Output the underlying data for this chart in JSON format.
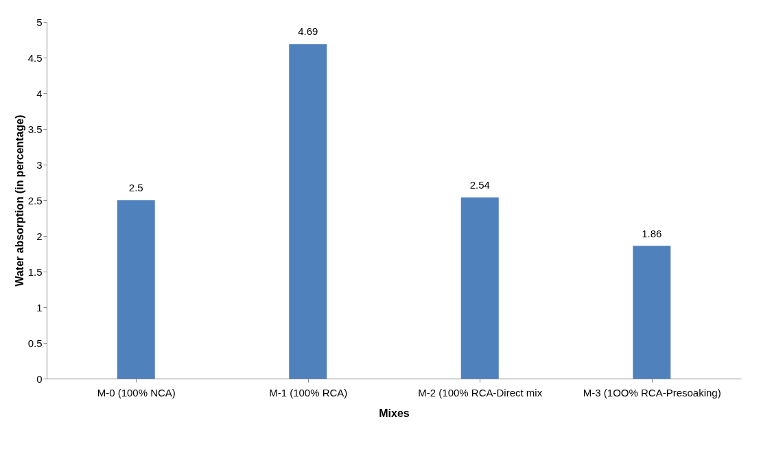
{
  "chart_data": {
    "type": "bar",
    "xlabel": "Mixes",
    "ylabel": "Water absorption (in percentage)",
    "categories": [
      "M-0 (100% NCA)",
      "M-1 (100% RCA)",
      "M-2 (100% RCA-Direct mix",
      "M-3 (1OO% RCA-Presoaking)"
    ],
    "values": [
      2.5,
      4.69,
      2.54,
      1.86
    ],
    "color": "#4f81bd",
    "ylim": [
      0,
      5
    ],
    "yticks": [
      0,
      0.5,
      1,
      1.5,
      2,
      2.5,
      3,
      3.5,
      4,
      4.5,
      5
    ],
    "grid": false,
    "data_labels": true
  }
}
